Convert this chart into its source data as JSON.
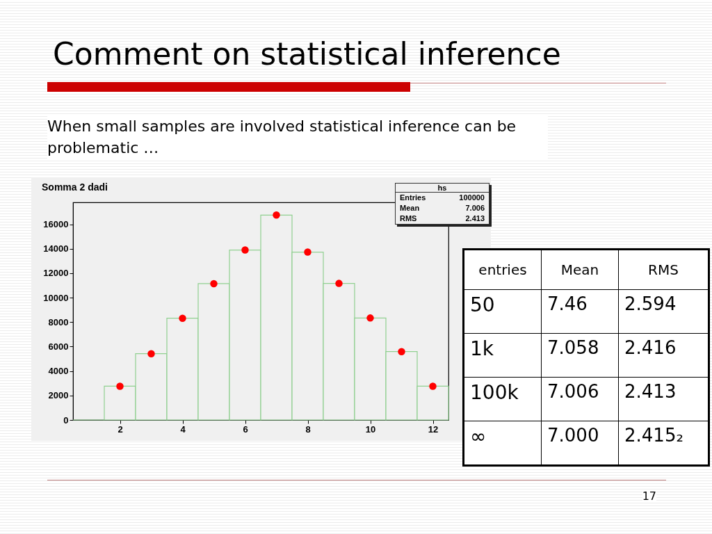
{
  "chart_data": [
    {
      "type": "histogram",
      "title": "Somma 2 dadi",
      "bins": [
        0.5,
        1.5,
        2.5,
        3.5,
        4.5,
        5.5,
        6.5,
        7.5,
        8.5,
        9.5,
        10.5,
        11.5,
        12.5
      ],
      "series": [
        {
          "color": "#90d090",
          "values": [
            0,
            2760,
            5420,
            8320,
            11150,
            13900,
            16760,
            13730,
            11170,
            8340,
            5590,
            2760
          ]
        },
        {
          "type": "scatter",
          "color": "#ff0000",
          "x": [
            2,
            3,
            4,
            5,
            6,
            7,
            8,
            9,
            10,
            11,
            12
          ],
          "values": [
            2760,
            5420,
            8320,
            11150,
            13900,
            16760,
            13730,
            11170,
            8340,
            5590,
            2760
          ]
        }
      ],
      "xlim": [
        0.5,
        12.5
      ],
      "xticks": [
        2,
        4,
        6,
        8,
        10,
        12
      ],
      "ylim": [
        0,
        17800
      ],
      "yticks": [
        0,
        2000,
        4000,
        6000,
        8000,
        10000,
        12000,
        14000,
        16000
      ],
      "grid": false,
      "marker": "circle",
      "annotations": [
        "hs",
        "Entries",
        "100000",
        "Mean",
        "7.006",
        "RMS",
        "2.413"
      ]
    },
    {
      "type": "other",
      "title": "Comment on statistical inference",
      "subtitle": "When small samples are involved statistical inference can be problematic …",
      "categories": [
        "entries",
        "Mean",
        "RMS"
      ],
      "cell_labels": [
        [
          "50",
          "7.46",
          "2.594"
        ],
        [
          "1k",
          "7.058",
          "2.416"
        ],
        [
          "100k",
          "7.006",
          "2.413"
        ],
        [
          "∞",
          "7.000",
          "2.415₂"
        ]
      ],
      "annotations": [
        "17"
      ]
    }
  ]
}
